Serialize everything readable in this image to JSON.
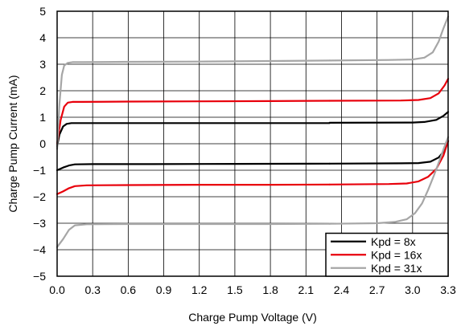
{
  "chart_data": {
    "type": "line",
    "xlabel": "Charge Pump Voltage (V)",
    "ylabel": "Charge Pump Current (mA)",
    "xlim": [
      0,
      3.3
    ],
    "ylim": [
      -5,
      5
    ],
    "x_ticks": [
      "0.0",
      "0.3",
      "0.6",
      "0.9",
      "1.2",
      "1.5",
      "1.8",
      "2.1",
      "2.4",
      "2.7",
      "3.0",
      "3.3"
    ],
    "y_ticks": [
      "5",
      "4",
      "3",
      "2",
      "1",
      "0",
      "−1",
      "−2",
      "−3",
      "−4",
      "−5"
    ],
    "grid": true,
    "legend_position": "bottom-right",
    "series": [
      {
        "name": "Kpd = 8x",
        "color": "#000000",
        "branches": [
          {
            "x": [
              0.0,
              0.02,
              0.05,
              0.08,
              0.12,
              0.2,
              0.5,
              1.0,
              1.5,
              2.0,
              2.3
            ],
            "y": [
              -0.1,
              0.35,
              0.65,
              0.75,
              0.78,
              0.78,
              0.78,
              0.78,
              0.78,
              0.78,
              0.78
            ]
          },
          {
            "x": [
              2.3,
              3.0,
              3.1,
              3.2,
              3.26,
              3.3
            ],
            "y": [
              0.79,
              0.8,
              0.82,
              0.9,
              1.05,
              1.2
            ]
          },
          {
            "x": [
              0.0,
              0.05,
              0.1,
              0.15,
              0.3,
              0.8,
              1.5,
              2.3
            ],
            "y": [
              -1.0,
              -0.9,
              -0.82,
              -0.78,
              -0.77,
              -0.77,
              -0.76,
              -0.75
            ]
          },
          {
            "x": [
              2.3,
              2.9,
              3.05,
              3.15,
              3.22,
              3.27,
              3.3
            ],
            "y": [
              -0.75,
              -0.74,
              -0.73,
              -0.68,
              -0.52,
              -0.25,
              0.1
            ]
          }
        ]
      },
      {
        "name": "Kpd = 16x",
        "color": "#e8000b",
        "branches": [
          {
            "x": [
              0.0,
              0.03,
              0.06,
              0.09,
              0.13,
              0.2,
              0.6,
              1.2,
              1.8,
              2.3
            ],
            "y": [
              0.0,
              0.9,
              1.4,
              1.55,
              1.58,
              1.58,
              1.59,
              1.6,
              1.61,
              1.62
            ]
          },
          {
            "x": [
              2.3,
              2.9,
              3.05,
              3.15,
              3.22,
              3.27,
              3.3
            ],
            "y": [
              1.62,
              1.63,
              1.65,
              1.72,
              1.9,
              2.2,
              2.45
            ]
          },
          {
            "x": [
              0.0,
              0.05,
              0.1,
              0.15,
              0.25,
              0.6,
              1.2,
              1.8,
              2.3
            ],
            "y": [
              -1.9,
              -1.8,
              -1.68,
              -1.6,
              -1.57,
              -1.56,
              -1.55,
              -1.55,
              -1.54
            ]
          },
          {
            "x": [
              2.3,
              2.8,
              2.95,
              3.05,
              3.13,
              3.2,
              3.26,
              3.3
            ],
            "y": [
              -1.54,
              -1.52,
              -1.5,
              -1.42,
              -1.25,
              -0.95,
              -0.45,
              0.1
            ]
          }
        ]
      },
      {
        "name": "Kpd = 31x",
        "color": "#a6a6a6",
        "branches": [
          {
            "x": [
              0.0,
              0.02,
              0.04,
              0.06,
              0.09,
              0.13,
              0.2,
              0.6,
              1.2,
              1.8,
              2.3
            ],
            "y": [
              -0.2,
              1.5,
              2.6,
              2.95,
              3.05,
              3.08,
              3.08,
              3.09,
              3.1,
              3.12,
              3.14
            ]
          },
          {
            "x": [
              2.3,
              2.8,
              3.0,
              3.1,
              3.17,
              3.22,
              3.26,
              3.3
            ],
            "y": [
              3.14,
              3.16,
              3.18,
              3.25,
              3.45,
              3.85,
              4.35,
              4.8
            ]
          },
          {
            "x": [
              0.0,
              0.05,
              0.1,
              0.15,
              0.25,
              0.6,
              1.2,
              1.8,
              2.3
            ],
            "y": [
              -3.9,
              -3.6,
              -3.25,
              -3.08,
              -3.04,
              -3.03,
              -3.03,
              -3.03,
              -3.02
            ]
          },
          {
            "x": [
              2.3,
              2.7,
              2.85,
              2.95,
              3.02,
              3.08,
              3.13,
              3.18,
              3.23,
              3.27,
              3.3
            ],
            "y": [
              -3.02,
              -3.0,
              -2.95,
              -2.85,
              -2.62,
              -2.25,
              -1.75,
              -1.2,
              -0.6,
              -0.1,
              0.25
            ]
          }
        ]
      }
    ]
  }
}
